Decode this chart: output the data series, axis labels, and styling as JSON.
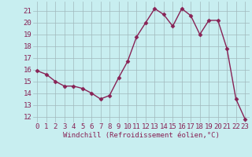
{
  "x": [
    0,
    1,
    2,
    3,
    4,
    5,
    6,
    7,
    8,
    9,
    10,
    11,
    12,
    13,
    14,
    15,
    16,
    17,
    18,
    19,
    20,
    21,
    22,
    23
  ],
  "y": [
    15.9,
    15.6,
    15.0,
    14.6,
    14.6,
    14.4,
    14.0,
    13.5,
    13.8,
    15.3,
    16.7,
    18.8,
    20.0,
    21.2,
    20.7,
    19.7,
    21.2,
    20.6,
    19.0,
    20.2,
    20.2,
    17.8,
    13.5,
    11.8
  ],
  "line_color": "#882255",
  "marker": "D",
  "marker_size": 2.5,
  "linewidth": 1.0,
  "bg_color": "#c8eef0",
  "grid_color": "#a0b8bc",
  "xlabel": "Windchill (Refroidissement éolien,°C)",
  "ylabel_ticks": [
    12,
    13,
    14,
    15,
    16,
    17,
    18,
    19,
    20,
    21
  ],
  "xlim": [
    -0.5,
    23.5
  ],
  "ylim": [
    11.5,
    21.8
  ],
  "tick_color": "#882255",
  "xlabel_color": "#882255",
  "xlabel_fontsize": 6.5,
  "tick_fontsize": 6.5
}
